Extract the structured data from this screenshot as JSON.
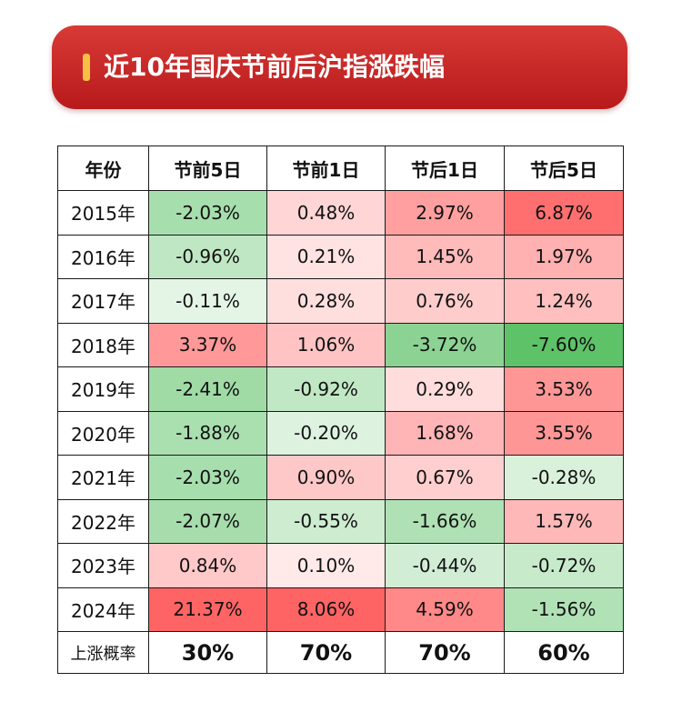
{
  "title": "近10年国庆节前后沪指涨跌幅",
  "colors": {
    "banner": "#c62626",
    "accent_bar": "#f6c044",
    "up": "#e83a3a",
    "down": "#2e9e4e"
  },
  "chart_data": {
    "type": "table",
    "columns": [
      "年份",
      "节前5日",
      "节前1日",
      "节后1日",
      "节后5日"
    ],
    "rows": [
      {
        "year": "2015年",
        "values": [
          "-2.03%",
          "0.48%",
          "2.97%",
          "6.87%"
        ]
      },
      {
        "year": "2016年",
        "values": [
          "-0.96%",
          "0.21%",
          "1.45%",
          "1.97%"
        ]
      },
      {
        "year": "2017年",
        "values": [
          "-0.11%",
          "0.28%",
          "0.76%",
          "1.24%"
        ]
      },
      {
        "year": "2018年",
        "values": [
          "3.37%",
          "1.06%",
          "-3.72%",
          "-7.60%"
        ]
      },
      {
        "year": "2019年",
        "values": [
          "-2.41%",
          "-0.92%",
          "0.29%",
          "3.53%"
        ]
      },
      {
        "year": "2020年",
        "values": [
          "-1.88%",
          "-0.20%",
          "1.68%",
          "3.55%"
        ]
      },
      {
        "year": "2021年",
        "values": [
          "-2.03%",
          "0.90%",
          "0.67%",
          "-0.28%"
        ]
      },
      {
        "year": "2022年",
        "values": [
          "-2.07%",
          "-0.55%",
          "-1.66%",
          "1.57%"
        ]
      },
      {
        "year": "2023年",
        "values": [
          "0.84%",
          "0.10%",
          "-0.44%",
          "-0.72%"
        ]
      },
      {
        "year": "2024年",
        "values": [
          "21.37%",
          "8.06%",
          "4.59%",
          "-1.56%"
        ]
      }
    ],
    "footer": {
      "label": "上涨概率",
      "values": [
        "30%",
        "70%",
        "70%",
        "60%"
      ]
    }
  }
}
